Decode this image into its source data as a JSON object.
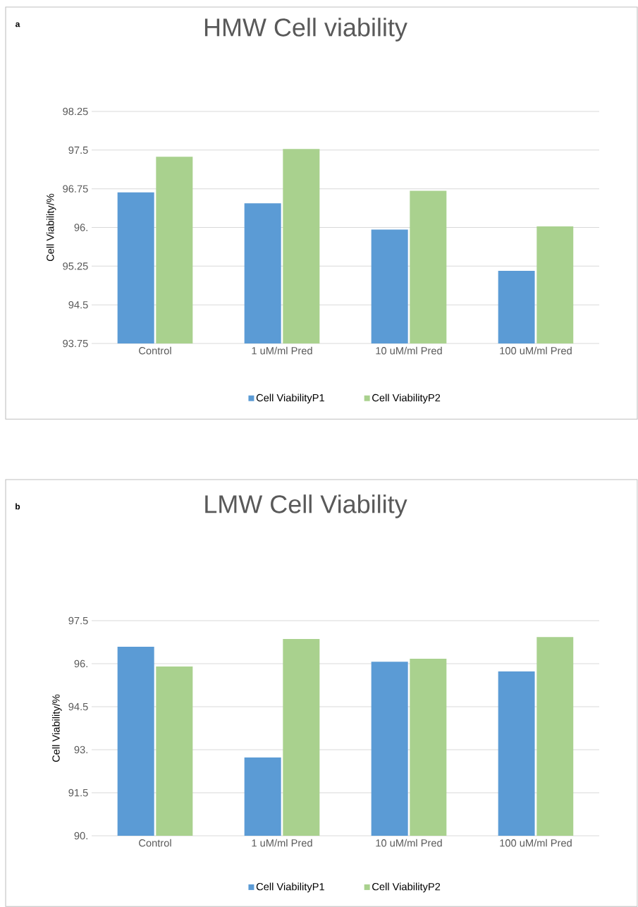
{
  "chart_data": [
    {
      "type": "bar",
      "title": "HMW Cell viability",
      "ylabel": "Cell Viability/%",
      "annotations": [
        "a"
      ],
      "categories": [
        "Control",
        "1 uM/ml Pred",
        "10 uM/ml Pred",
        "100 uM/ml Pred"
      ],
      "series": [
        {
          "name": "Cell ViabilityP1",
          "color": "#5b9bd5",
          "values": [
            96.68,
            96.47,
            95.96,
            95.16
          ]
        },
        {
          "name": "Cell ViabilityP2",
          "color": "#a9d18e",
          "values": [
            97.37,
            97.52,
            96.71,
            96.02
          ]
        }
      ],
      "ylim": [
        93.75,
        98.25
      ],
      "yticks": [
        93.75,
        94.5,
        95.25,
        {
          "value": 96,
          "label": "96."
        },
        96.75,
        97.5,
        98.25
      ],
      "grid": "y",
      "legend": "bottom"
    },
    {
      "type": "bar",
      "title": "LMW Cell Viability",
      "ylabel": "Cell Viability/%",
      "annotations": [
        "b"
      ],
      "categories": [
        "Control",
        "1 uM/ml Pred",
        "10 uM/ml Pred",
        "100 uM/ml Pred"
      ],
      "series": [
        {
          "name": "Cell ViabilityP1",
          "color": "#5b9bd5",
          "values": [
            96.59,
            92.73,
            96.07,
            95.73
          ]
        },
        {
          "name": "Cell ViabilityP2",
          "color": "#a9d18e",
          "values": [
            95.9,
            96.86,
            96.17,
            96.93
          ]
        }
      ],
      "ylim": [
        90,
        97.5
      ],
      "yticks": [
        {
          "value": 90,
          "label": "90."
        },
        91.5,
        {
          "value": 93,
          "label": "93."
        },
        94.5,
        {
          "value": 96,
          "label": "96."
        },
        97.5
      ],
      "grid": "y",
      "legend": "bottom"
    }
  ]
}
